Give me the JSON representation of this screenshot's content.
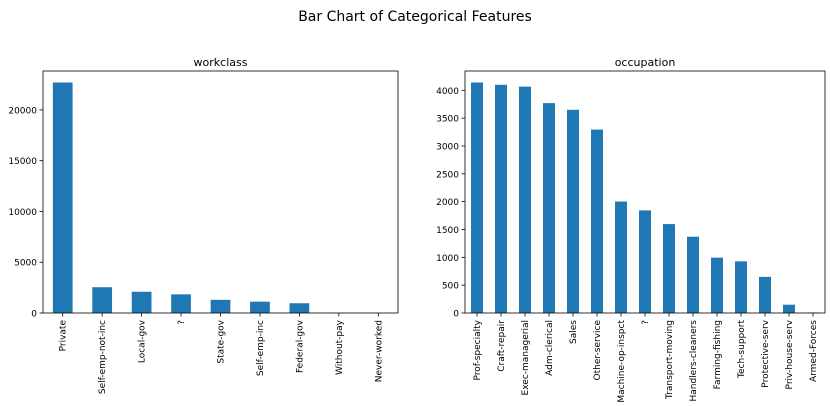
{
  "figure": {
    "title": "Bar Chart of Categorical Features",
    "bar_color": "#1f77b4"
  },
  "chart_data": [
    {
      "type": "bar",
      "title": "workclass",
      "xlabel": "",
      "ylabel": "",
      "categories": [
        "Private",
        "Self-emp-not-inc",
        "Local-gov",
        "?",
        "State-gov",
        "Self-emp-inc",
        "Federal-gov",
        "Without-pay",
        "Never-worked"
      ],
      "values": [
        22696,
        2541,
        2093,
        1836,
        1298,
        1116,
        960,
        14,
        7
      ],
      "ylim": [
        0,
        23830
      ],
      "yticks": [
        0,
        5000,
        10000,
        15000,
        20000
      ],
      "grid": false,
      "legend": "none"
    },
    {
      "type": "bar",
      "title": "occupation",
      "xlabel": "",
      "ylabel": "",
      "categories": [
        "Prof-specialty",
        "Craft-repair",
        "Exec-managerial",
        "Adm-clerical",
        "Sales",
        "Other-service",
        "Machine-op-inspct",
        "?",
        "Transport-moving",
        "Handlers-cleaners",
        "Farming-fishing",
        "Tech-support",
        "Protective-serv",
        "Priv-house-serv",
        "Armed-Forces"
      ],
      "values": [
        4140,
        4099,
        4066,
        3770,
        3650,
        3295,
        2002,
        1843,
        1597,
        1370,
        994,
        928,
        649,
        149,
        9
      ],
      "ylim": [
        0,
        4347
      ],
      "yticks": [
        0,
        500,
        1000,
        1500,
        2000,
        2500,
        3000,
        3500,
        4000
      ],
      "grid": false,
      "legend": "none"
    }
  ]
}
